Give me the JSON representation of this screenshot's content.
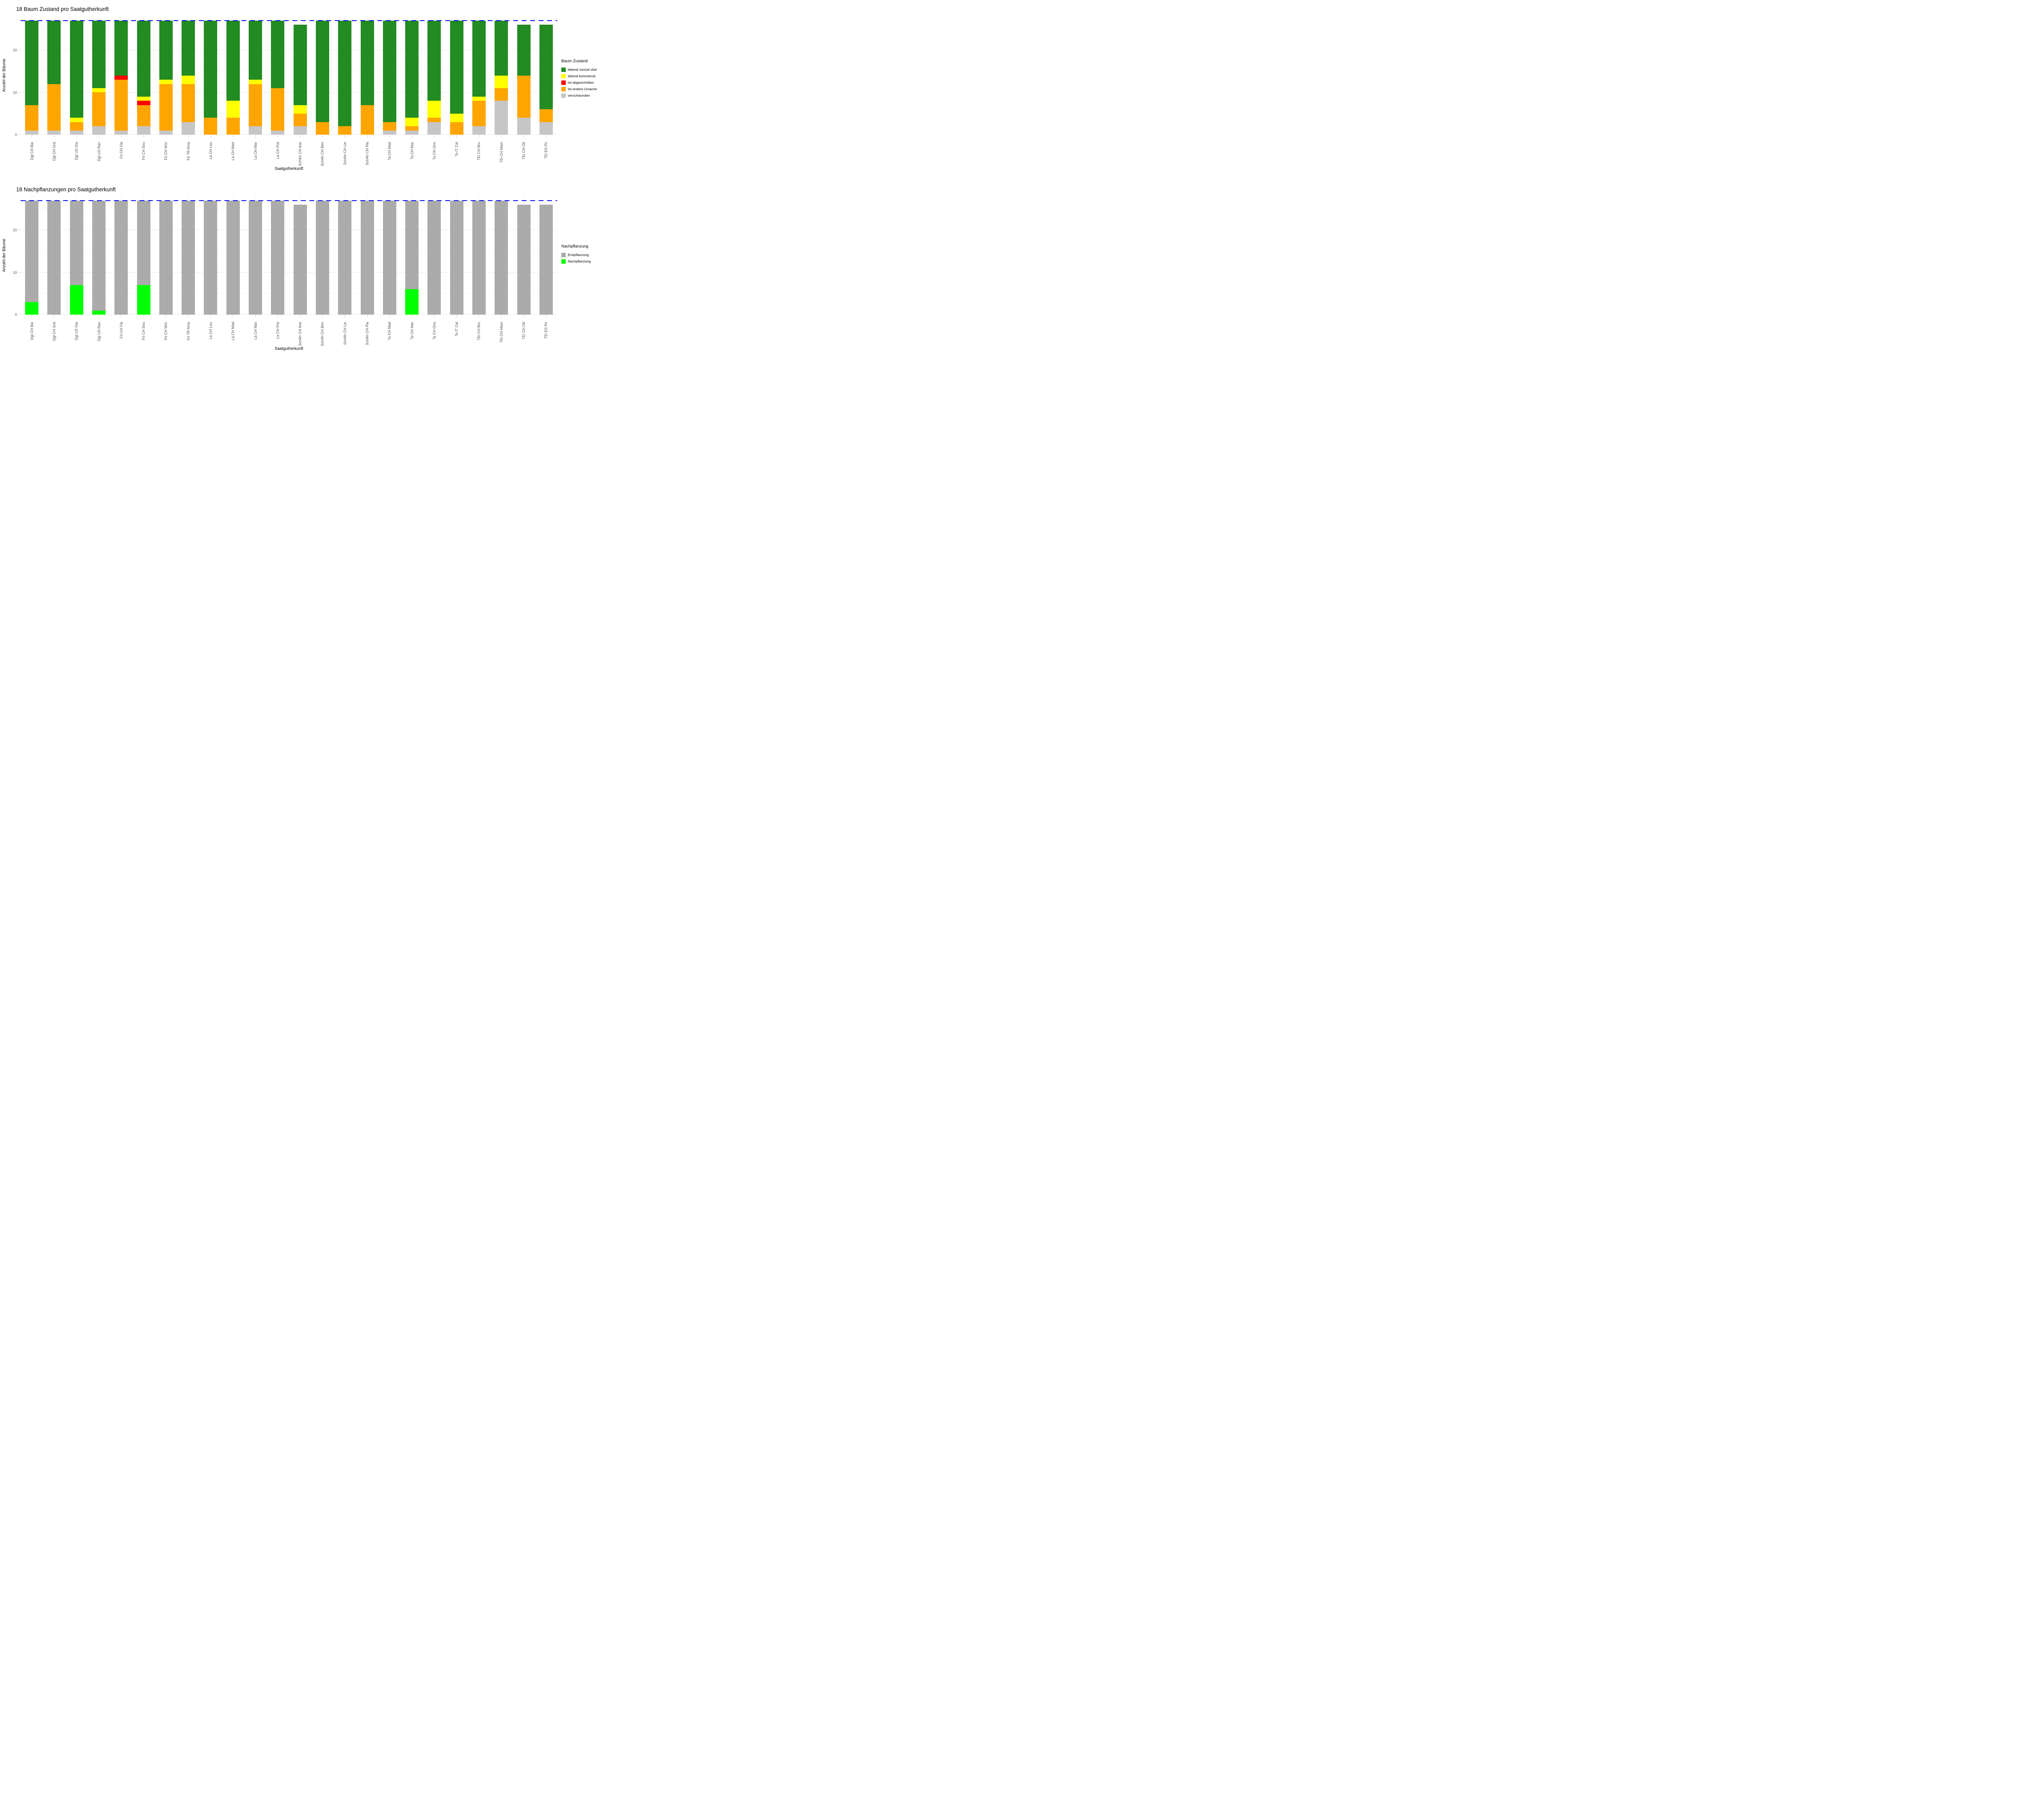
{
  "figure": {
    "background": "#ffffff",
    "reference_line_color": "#0000ff",
    "grid_major_color": "#e9e9e9",
    "grid_minor_color": "#f3f3f3",
    "tick_color": "#d6d6d6",
    "tick_label_color": "#4d4d4d"
  },
  "charts": [
    {
      "title": "18 Baum Zustand pro Saatgutherkunft",
      "xlabel": "Saatgutherkunft",
      "ylabel": "Anzahl der Bäume",
      "legend_title": "Baum Zustand",
      "yticks": [
        0,
        10,
        20
      ],
      "minor_yticks": [
        5,
        15,
        25
      ],
      "ymax_units": 28,
      "reference_line_y": 27,
      "categories": [
        "Dgl CH Bie",
        "Dgl CH Grä",
        "Dgl US Gla",
        "Dgl US Ran",
        "Fö CH Flä",
        "Fö CH Sou",
        "Fö CH Wür",
        "Fö TR Ama",
        "Lä CH Leu",
        "Lä CH Mad",
        "Lä CH Mar",
        "Lä CH Prä",
        "SchAh CH Ave",
        "SchAh CH Bev",
        "SchAh CH Lie",
        "SchAh CH Pla",
        "Ta CH Mad",
        "Ta CH Mar",
        "Ta CH Ons",
        "Ta IT Cal",
        "TEi CH Bru",
        "TEi CH Mam",
        "TEi CH Olt",
        "TEi ES Pir"
      ],
      "series": [
        {
          "name": "lebend normal vital",
          "color": "#228B22",
          "values": [
            20,
            15,
            23,
            16,
            13,
            18,
            14,
            13,
            23,
            19,
            14,
            16,
            19,
            24,
            25,
            20,
            24,
            23,
            19,
            22,
            18,
            13,
            12,
            20
          ]
        },
        {
          "name": "lebend kümmernd",
          "color": "#FFFF00",
          "values": [
            0,
            0,
            1,
            1,
            0,
            1,
            1,
            2,
            0,
            4,
            1,
            0,
            2,
            0,
            0,
            0,
            0,
            2,
            4,
            2,
            1,
            3,
            0,
            0
          ]
        },
        {
          "name": "tot abgeschnitten",
          "color": "#FF0000",
          "values": [
            0,
            0,
            0,
            0,
            1,
            1,
            0,
            0,
            0,
            0,
            0,
            0,
            0,
            0,
            0,
            0,
            0,
            0,
            0,
            0,
            0,
            0,
            0,
            0
          ]
        },
        {
          "name": "tot andere Ursache",
          "color": "#FFA500",
          "values": [
            6,
            11,
            2,
            8,
            12,
            5,
            11,
            9,
            4,
            4,
            10,
            10,
            3,
            3,
            2,
            7,
            2,
            1,
            1,
            3,
            6,
            3,
            10,
            3
          ]
        },
        {
          "name": "verschwunden",
          "color": "#C6C6C6",
          "values": [
            1,
            1,
            1,
            2,
            1,
            2,
            1,
            3,
            0,
            0,
            2,
            1,
            2,
            0,
            0,
            0,
            1,
            1,
            3,
            0,
            2,
            8,
            4,
            3
          ]
        }
      ],
      "stack_bottom_to_top": [
        "verschwunden",
        "tot andere Ursache",
        "tot abgeschnitten",
        "lebend kümmernd",
        "lebend normal vital"
      ],
      "chart_type": "bar"
    },
    {
      "title": "18 Nachpflanzungen pro Saatgutherkunft",
      "xlabel": "Saatgutherkunft",
      "ylabel": "Anzahl der Bäume",
      "legend_title": "Nachpflanzung",
      "yticks": [
        0,
        10,
        20
      ],
      "minor_yticks": [
        5,
        15,
        25
      ],
      "ymax_units": 28,
      "reference_line_y": 27,
      "categories": [
        "Dgl CH Bie",
        "Dgl CH Grä",
        "Dgl US Gla",
        "Dgl US Ran",
        "Fö CH Flä",
        "Fö CH Sou",
        "Fö CH Wür",
        "Fö TR Ama",
        "Lä CH Leu",
        "Lä CH Mad",
        "Lä CH Mar",
        "Lä CH Prä",
        "SchAh CH Ave",
        "SchAh CH Bev",
        "SchAh CH Lie",
        "SchAh CH Pla",
        "Ta CH Mad",
        "Ta CH Mar",
        "Ta CH Ons",
        "Ta IT Cal",
        "TEi CH Bru",
        "TEi CH Mam",
        "TEi CH Olt",
        "TEi ES Pir"
      ],
      "series": [
        {
          "name": "Erstpflanzung",
          "color": "#ABABAB",
          "values": [
            24,
            27,
            20,
            26,
            27,
            20,
            27,
            27,
            27,
            27,
            27,
            27,
            26,
            27,
            27,
            27,
            27,
            21,
            27,
            27,
            27,
            27,
            26,
            26
          ]
        },
        {
          "name": "Nachpflanzung",
          "color": "#00FF00",
          "values": [
            3,
            0,
            7,
            1,
            0,
            7,
            0,
            0,
            0,
            0,
            0,
            0,
            0,
            0,
            0,
            0,
            0,
            6,
            0,
            0,
            0,
            0,
            0,
            0
          ]
        }
      ],
      "stack_bottom_to_top": [
        "Nachpflanzung",
        "Erstpflanzung"
      ],
      "chart_type": "bar"
    }
  ],
  "chart_data": [
    {
      "type": "bar",
      "stacked": true,
      "title": "18 Baum Zustand pro Saatgutherkunft",
      "xlabel": "Saatgutherkunft",
      "ylabel": "Anzahl der Bäume",
      "ylim": [
        0,
        28
      ],
      "yticks": [
        0,
        10,
        20
      ],
      "grid": true,
      "legend_position": "right",
      "legend_title": "Baum Zustand",
      "reference_line": {
        "y": 27,
        "color": "#0000ff",
        "style": "dashed"
      },
      "categories": [
        "Dgl CH Bie",
        "Dgl CH Grä",
        "Dgl US Gla",
        "Dgl US Ran",
        "Fö CH Flä",
        "Fö CH Sou",
        "Fö CH Wür",
        "Fö TR Ama",
        "Lä CH Leu",
        "Lä CH Mad",
        "Lä CH Mar",
        "Lä CH Prä",
        "SchAh CH Ave",
        "SchAh CH Bev",
        "SchAh CH Lie",
        "SchAh CH Pla",
        "Ta CH Mad",
        "Ta CH Mar",
        "Ta CH Ons",
        "Ta IT Cal",
        "TEi CH Bru",
        "TEi CH Mam",
        "TEi CH Olt",
        "TEi ES Pir"
      ],
      "series": [
        {
          "name": "lebend normal vital",
          "values": [
            20,
            15,
            23,
            16,
            13,
            18,
            14,
            13,
            23,
            19,
            14,
            16,
            19,
            24,
            25,
            20,
            24,
            23,
            19,
            22,
            18,
            13,
            12,
            20
          ]
        },
        {
          "name": "lebend kümmernd",
          "values": [
            0,
            0,
            1,
            1,
            0,
            1,
            1,
            2,
            0,
            4,
            1,
            0,
            2,
            0,
            0,
            0,
            0,
            2,
            4,
            2,
            1,
            3,
            0,
            0
          ]
        },
        {
          "name": "tot abgeschnitten",
          "values": [
            0,
            0,
            0,
            0,
            1,
            1,
            0,
            0,
            0,
            0,
            0,
            0,
            0,
            0,
            0,
            0,
            0,
            0,
            0,
            0,
            0,
            0,
            0,
            0
          ]
        },
        {
          "name": "tot andere Ursache",
          "values": [
            6,
            11,
            2,
            8,
            12,
            5,
            11,
            9,
            4,
            4,
            10,
            10,
            3,
            3,
            2,
            7,
            2,
            1,
            1,
            3,
            6,
            3,
            10,
            3
          ]
        },
        {
          "name": "verschwunden",
          "values": [
            1,
            1,
            1,
            2,
            1,
            2,
            1,
            3,
            0,
            0,
            2,
            1,
            2,
            0,
            0,
            0,
            1,
            1,
            3,
            0,
            2,
            8,
            4,
            3
          ]
        }
      ]
    },
    {
      "type": "bar",
      "stacked": true,
      "title": "18 Nachpflanzungen pro Saatgutherkunft",
      "xlabel": "Saatgutherkunft",
      "ylabel": "Anzahl der Bäume",
      "ylim": [
        0,
        28
      ],
      "yticks": [
        0,
        10,
        20
      ],
      "grid": true,
      "legend_position": "right",
      "legend_title": "Nachpflanzung",
      "reference_line": {
        "y": 27,
        "color": "#0000ff",
        "style": "dashed"
      },
      "categories": [
        "Dgl CH Bie",
        "Dgl CH Grä",
        "Dgl US Gla",
        "Dgl US Ran",
        "Fö CH Flä",
        "Fö CH Sou",
        "Fö CH Wür",
        "Fö TR Ama",
        "Lä CH Leu",
        "Lä CH Mad",
        "Lä CH Mar",
        "Lä CH Prä",
        "SchAh CH Ave",
        "SchAh CH Bev",
        "SchAh CH Lie",
        "SchAh CH Pla",
        "Ta CH Mad",
        "Ta CH Mar",
        "Ta CH Ons",
        "Ta IT Cal",
        "TEi CH Bru",
        "TEi CH Mam",
        "TEi CH Olt",
        "TEi ES Pir"
      ],
      "series": [
        {
          "name": "Erstpflanzung",
          "values": [
            24,
            27,
            20,
            26,
            27,
            20,
            27,
            27,
            27,
            27,
            27,
            27,
            26,
            27,
            27,
            27,
            27,
            21,
            27,
            27,
            27,
            27,
            26,
            26
          ]
        },
        {
          "name": "Nachpflanzung",
          "values": [
            3,
            0,
            7,
            1,
            0,
            7,
            0,
            0,
            0,
            0,
            0,
            0,
            0,
            0,
            0,
            0,
            0,
            6,
            0,
            0,
            0,
            0,
            0,
            0
          ]
        }
      ]
    }
  ]
}
